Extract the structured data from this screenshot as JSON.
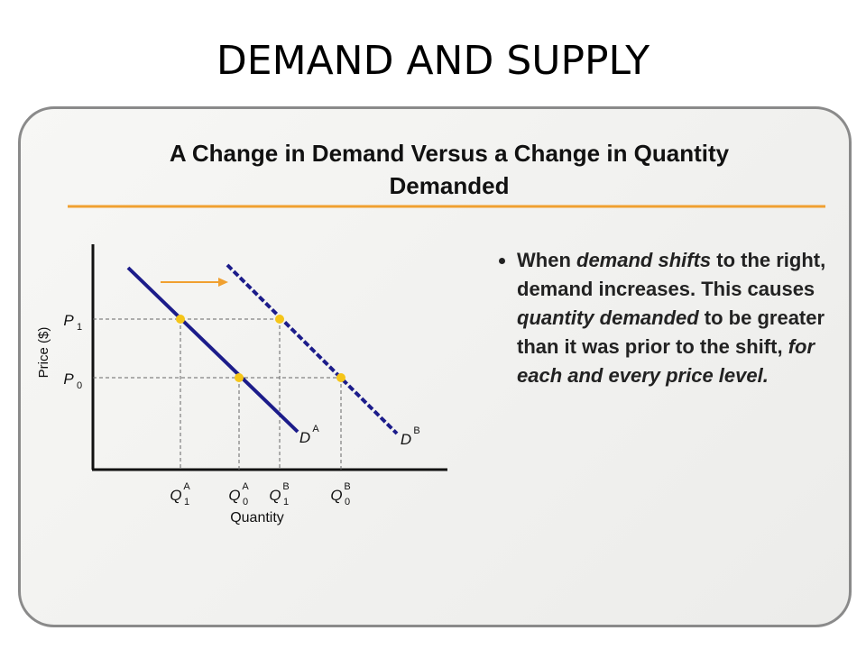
{
  "slide_title": "DEMAND AND SUPPLY",
  "panel": {
    "title_lines": [
      "A Change in Demand Versus a Change in Quantity",
      "Demanded"
    ],
    "diagram": {
      "y_axis_label": "Price ($)",
      "x_axis_label": "Quantity",
      "price_labels": [
        {
          "base": "P",
          "sub": "1"
        },
        {
          "base": "P",
          "sub": "0"
        }
      ],
      "quantity_labels": [
        {
          "base": "Q",
          "sub": "1",
          "sup": "A"
        },
        {
          "base": "Q",
          "sub": "0",
          "sup": "A"
        },
        {
          "base": "Q",
          "sub": "1",
          "sup": "B"
        },
        {
          "base": "Q",
          "sub": "0",
          "sup": "B"
        }
      ],
      "curve_labels": [
        {
          "base": "D",
          "sup": "A"
        },
        {
          "base": "D",
          "sup": "B"
        }
      ]
    },
    "bullet": [
      {
        "text": "When ",
        "emphasis": false
      },
      {
        "text": "demand shifts",
        "emphasis": true
      },
      {
        "text": " to the right, demand increases. This causes ",
        "emphasis": false
      },
      {
        "text": "quantity demanded",
        "emphasis": true
      },
      {
        "text": " to be greater than it was prior to the shift, ",
        "emphasis": false
      },
      {
        "text": "for each and every price level.",
        "emphasis": true
      }
    ]
  }
}
